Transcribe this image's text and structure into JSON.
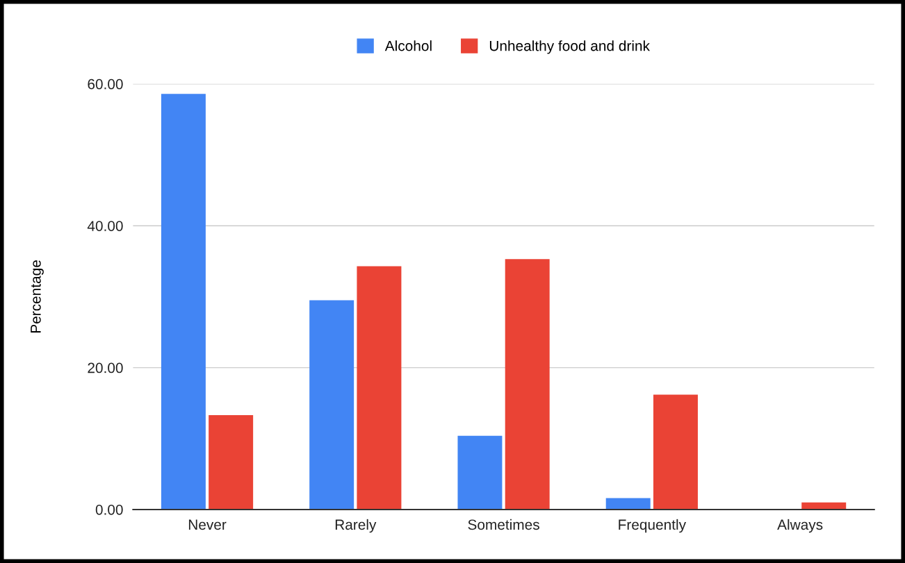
{
  "chart_data": {
    "type": "bar",
    "ylabel": "Percentage",
    "categories": [
      "Never",
      "Rarely",
      "Sometimes",
      "Frequently",
      "Always"
    ],
    "series": [
      {
        "name": "Alcohol",
        "color": "#4285f4",
        "values": [
          58.6,
          29.5,
          10.4,
          1.6,
          0
        ]
      },
      {
        "name": "Unhealthy food and drink",
        "color": "#ea4335",
        "values": [
          13.3,
          34.3,
          35.3,
          16.2,
          1.0
        ]
      }
    ],
    "ylim": [
      0,
      60
    ],
    "yticks": [
      {
        "value": 0,
        "label": "0.00"
      },
      {
        "value": 20,
        "label": "20.00"
      },
      {
        "value": 40,
        "label": "40.00"
      },
      {
        "value": 60,
        "label": "60.00"
      }
    ],
    "grid": "y",
    "legend": "top"
  }
}
